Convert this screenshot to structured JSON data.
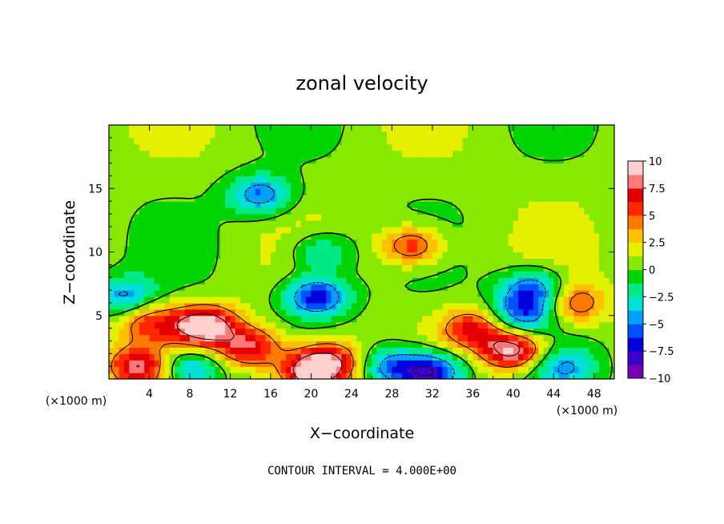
{
  "chart_data": {
    "type": "heatmap",
    "title": "zonal velocity",
    "xlabel": "X−coordinate",
    "ylabel": "Z−coordinate",
    "x_unit_left": "(×1000 m)",
    "x_unit_right": "(×1000 m)",
    "xlim": [
      0,
      50
    ],
    "ylim": [
      0,
      20
    ],
    "xticks": [
      "4",
      "8",
      "12",
      "16",
      "20",
      "24",
      "28",
      "32",
      "36",
      "40",
      "44",
      "48"
    ],
    "xtick_values": [
      4,
      8,
      12,
      16,
      20,
      24,
      28,
      32,
      36,
      40,
      44,
      48
    ],
    "yticks": [
      "5",
      "10",
      "15"
    ],
    "ytick_values": [
      5,
      10,
      15
    ],
    "colorbar": {
      "min": -10,
      "max": 10,
      "tick_labels": [
        "10",
        "7.5",
        "5",
        "2.5",
        "0",
        "−2.5",
        "−5",
        "−7.5",
        "−10"
      ],
      "tick_values": [
        10,
        7.5,
        5,
        2.5,
        0,
        -2.5,
        -5,
        -7.5,
        -10
      ],
      "colors": [
        "#7a00b4",
        "#3c00c8",
        "#0000dc",
        "#0050ff",
        "#00a0ff",
        "#00e0d8",
        "#00ea88",
        "#00d400",
        "#88e800",
        "#e4f000",
        "#ffc000",
        "#ff7800",
        "#ff2800",
        "#e40000",
        "#ff7878",
        "#ffd0d0"
      ]
    },
    "contour_interval": 4,
    "features": [
      {
        "kind": "jet",
        "x": 9.5,
        "z": 4.2,
        "value": 10
      },
      {
        "kind": "jet",
        "x": 20,
        "z": 0.5,
        "value": 10
      },
      {
        "kind": "jet",
        "x": 40,
        "z": 2.3,
        "value": 9
      },
      {
        "kind": "jet",
        "x": 30,
        "z": 10.5,
        "value": 6
      },
      {
        "kind": "jet",
        "x": 3,
        "z": 1.0,
        "value": 7
      },
      {
        "kind": "jet",
        "x": 46,
        "z": 6.0,
        "value": 5
      },
      {
        "kind": "jet",
        "x": 14,
        "z": 2.5,
        "value": 7
      },
      {
        "kind": "jet",
        "x": 4,
        "z": 4.5,
        "value": 5
      },
      {
        "kind": "jet",
        "x": 36,
        "z": 4.0,
        "value": 6
      },
      {
        "kind": "jet",
        "x": 22,
        "z": 1.5,
        "value": 6
      },
      {
        "kind": "jet",
        "x": 15,
        "z": 14.5,
        "value": -6
      },
      {
        "kind": "jet",
        "x": 20.5,
        "z": 6.5,
        "value": -8
      },
      {
        "kind": "jet",
        "x": 42,
        "z": 7.0,
        "value": -7
      },
      {
        "kind": "jet",
        "x": 41,
        "z": 5.0,
        "value": -6
      },
      {
        "kind": "jet",
        "x": 32,
        "z": 0.5,
        "value": -9
      },
      {
        "kind": "jet",
        "x": 28,
        "z": 1.0,
        "value": -6
      },
      {
        "kind": "jet",
        "x": 8,
        "z": 0.8,
        "value": -6
      },
      {
        "kind": "jet",
        "x": 1.5,
        "z": 6.5,
        "value": -5
      },
      {
        "kind": "jet",
        "x": 21,
        "z": 10.0,
        "value": -4
      },
      {
        "kind": "jet",
        "x": 45,
        "z": 1.0,
        "value": -4
      }
    ]
  },
  "footer": {
    "contour_interval_label": "CONTOUR INTERVAL = 4.000E+00"
  }
}
